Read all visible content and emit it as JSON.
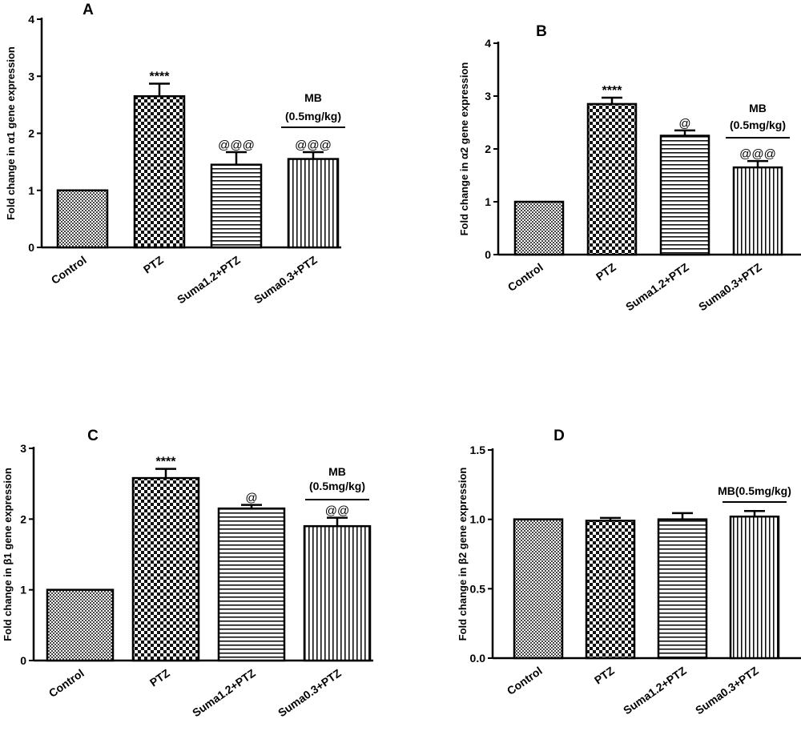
{
  "chart_data": [
    {
      "panel_label": "A",
      "type": "bar",
      "ylabel": "Fold change in α1 gene expression",
      "ylim": [
        0,
        4
      ],
      "yticks": [
        "0",
        "1",
        "2",
        "3",
        "4"
      ],
      "categories": [
        "Control",
        "PTZ",
        "Suma1.2+PTZ",
        "Suma0.3+PTZ"
      ],
      "values": [
        1.0,
        2.65,
        1.45,
        1.55
      ],
      "errors": [
        0.0,
        0.22,
        0.22,
        0.12
      ],
      "annotations": [
        "",
        "****",
        "@@@",
        "@@@"
      ],
      "patterns": [
        "fine",
        "checker",
        "hlines",
        "vlines"
      ],
      "group_label_lines": [
        "MB",
        "(0.5mg/kg)"
      ]
    },
    {
      "panel_label": "B",
      "type": "bar",
      "ylabel": "Fold change in α2 gene expression",
      "ylim": [
        0,
        4
      ],
      "yticks": [
        "0",
        "1",
        "2",
        "3",
        "4"
      ],
      "categories": [
        "Control",
        "PTZ",
        "Suma1.2+PTZ",
        "Suma0.3+PTZ"
      ],
      "values": [
        1.0,
        2.85,
        2.25,
        1.65
      ],
      "errors": [
        0.0,
        0.12,
        0.1,
        0.12
      ],
      "annotations": [
        "",
        "****",
        "@",
        "@@@"
      ],
      "patterns": [
        "fine",
        "checker",
        "hlines",
        "vlines"
      ],
      "group_label_lines": [
        "MB",
        "(0.5mg/kg)"
      ]
    },
    {
      "panel_label": "C",
      "type": "bar",
      "ylabel": "Fold change in β1 gene expression",
      "ylim": [
        0,
        3
      ],
      "yticks": [
        "0",
        "1",
        "2",
        "3"
      ],
      "categories": [
        "Control",
        "PTZ",
        "Suma1.2+PTZ",
        "Suma0.3+PTZ"
      ],
      "values": [
        1.0,
        2.58,
        2.15,
        1.9
      ],
      "errors": [
        0.0,
        0.13,
        0.05,
        0.12
      ],
      "annotations": [
        "",
        "****",
        "@",
        "@@"
      ],
      "patterns": [
        "fine",
        "checker",
        "hlines",
        "vlines"
      ],
      "group_label_lines": [
        "MB",
        "(0.5mg/kg)"
      ]
    },
    {
      "panel_label": "D",
      "type": "bar",
      "ylabel": "Fold change in β2 gene expression",
      "ylim": [
        0,
        1.5
      ],
      "yticks": [
        "0.0",
        "0.5",
        "1.0",
        "1.5"
      ],
      "categories": [
        "Control",
        "PTZ",
        "Suma1.2+PTZ",
        "Suma0.3+PTZ"
      ],
      "values": [
        1.0,
        0.99,
        1.0,
        1.02
      ],
      "errors": [
        0.0,
        0.02,
        0.045,
        0.04
      ],
      "annotations": [
        "",
        "",
        "",
        ""
      ],
      "patterns": [
        "fine",
        "checker",
        "hlines",
        "vlines"
      ],
      "group_label_lines": [
        "MB(0.5mg/kg)"
      ]
    }
  ]
}
